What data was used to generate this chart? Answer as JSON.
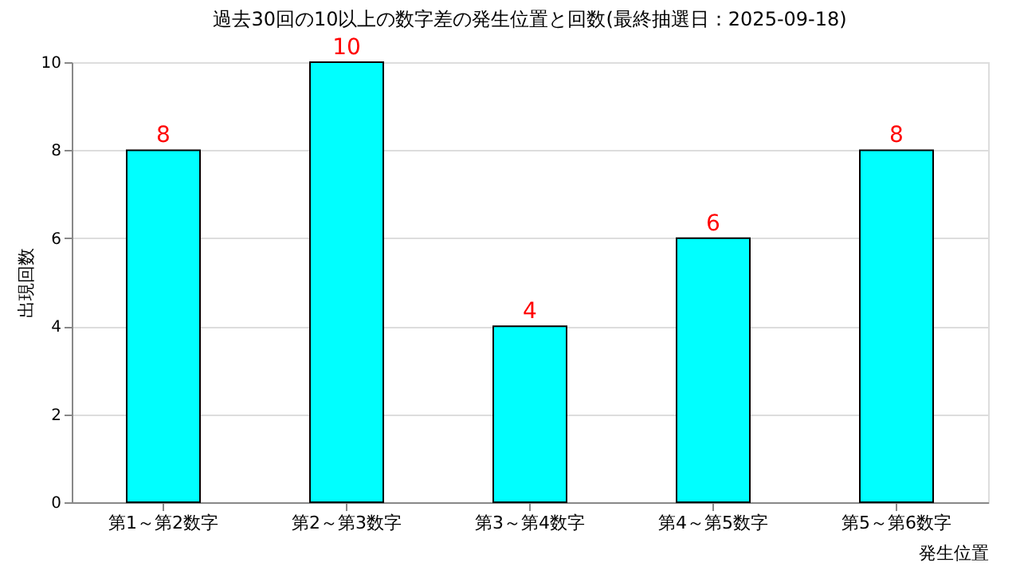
{
  "chart_data": {
    "type": "bar",
    "title": "過去30回の10以上の数字差の発生位置と回数(最終抽選日：2025-09-18)",
    "xlabel": "発生位置",
    "ylabel": "出現回数",
    "categories": [
      "第1～第2数字",
      "第2～第3数字",
      "第3～第4数字",
      "第4～第5数字",
      "第5～第6数字"
    ],
    "values": [
      8,
      10,
      4,
      6,
      8
    ],
    "color": "#00ffff",
    "ylim": [
      0,
      10
    ],
    "yticks": [
      0,
      2,
      4,
      6,
      8,
      10
    ],
    "grid": "y",
    "data_labels": true
  }
}
